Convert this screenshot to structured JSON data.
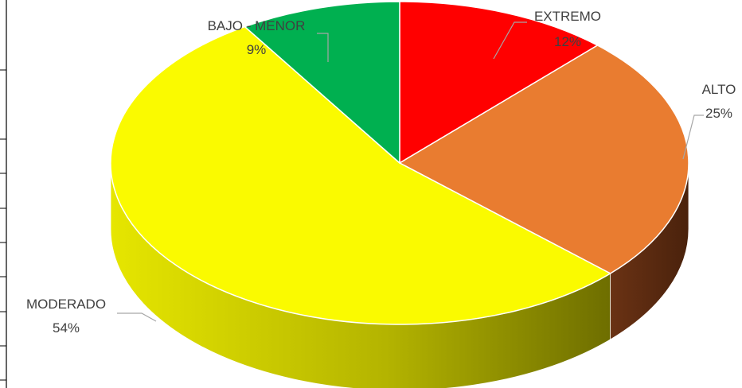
{
  "chart_data": {
    "type": "pie",
    "style": "3d",
    "slices": [
      {
        "label": "EXTREMO",
        "value": 12,
        "display": "12%",
        "color": "#FF0000",
        "side_color": "#8B0000"
      },
      {
        "label": "ALTO",
        "value": 25,
        "display": "25%",
        "color": "#E97C30",
        "side_color": "#5E2E10"
      },
      {
        "label": "MODERADO",
        "value": 54,
        "display": "54%",
        "color": "#FAFA00",
        "side_color": "#9E9E00"
      },
      {
        "label": "BAJO - MENOR",
        "value": 9,
        "display": "9%",
        "color": "#00B050",
        "side_color": "#006430"
      }
    ],
    "start_angle": "12-o'clock",
    "direction": "clockwise",
    "legend": "none",
    "data_labels": "outside with leader lines"
  }
}
